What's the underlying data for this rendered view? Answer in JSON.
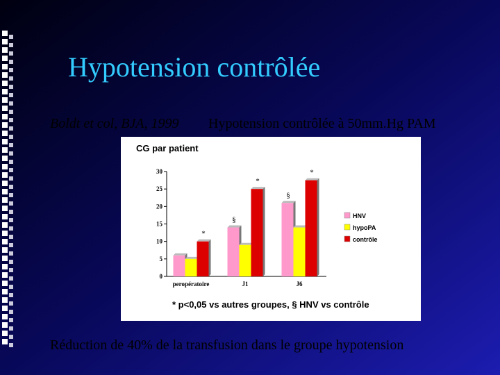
{
  "slide": {
    "title": "Hypotension contrôlée",
    "citation": "Boldt et col, BJA, 1999",
    "subtitle": "Hypotension contrôlée à 50mm.Hg PAM",
    "conclusion": "Réduction de 40% de la transfusion dans le groupe hypotension"
  },
  "chart_data": {
    "type": "bar",
    "title": "CG par patient",
    "categories": [
      "peropératoire",
      "J1",
      "J6"
    ],
    "series": [
      {
        "name": "HNV",
        "color": "#ff99cc",
        "values": [
          6,
          14,
          21
        ]
      },
      {
        "name": "hypoPA",
        "color": "#ffff00",
        "values": [
          5,
          9,
          14
        ]
      },
      {
        "name": "contrôle",
        "color": "#dd0000",
        "values": [
          10,
          25,
          27.5
        ]
      }
    ],
    "ylim": [
      0,
      30
    ],
    "yticks": [
      0,
      5,
      10,
      15,
      20,
      25,
      30
    ],
    "annotations": [
      {
        "text": "*",
        "category": "peropératoire",
        "series": "contrôle"
      },
      {
        "text": "§",
        "category": "J1",
        "series": "HNV"
      },
      {
        "text": "*",
        "category": "J1",
        "series": "contrôle"
      },
      {
        "text": "§",
        "category": "J6",
        "series": "HNV"
      },
      {
        "text": "*",
        "category": "J6",
        "series": "contrôle"
      }
    ],
    "footnote": "* p<0,05 vs autres groupes, § HNV vs contrôle"
  }
}
